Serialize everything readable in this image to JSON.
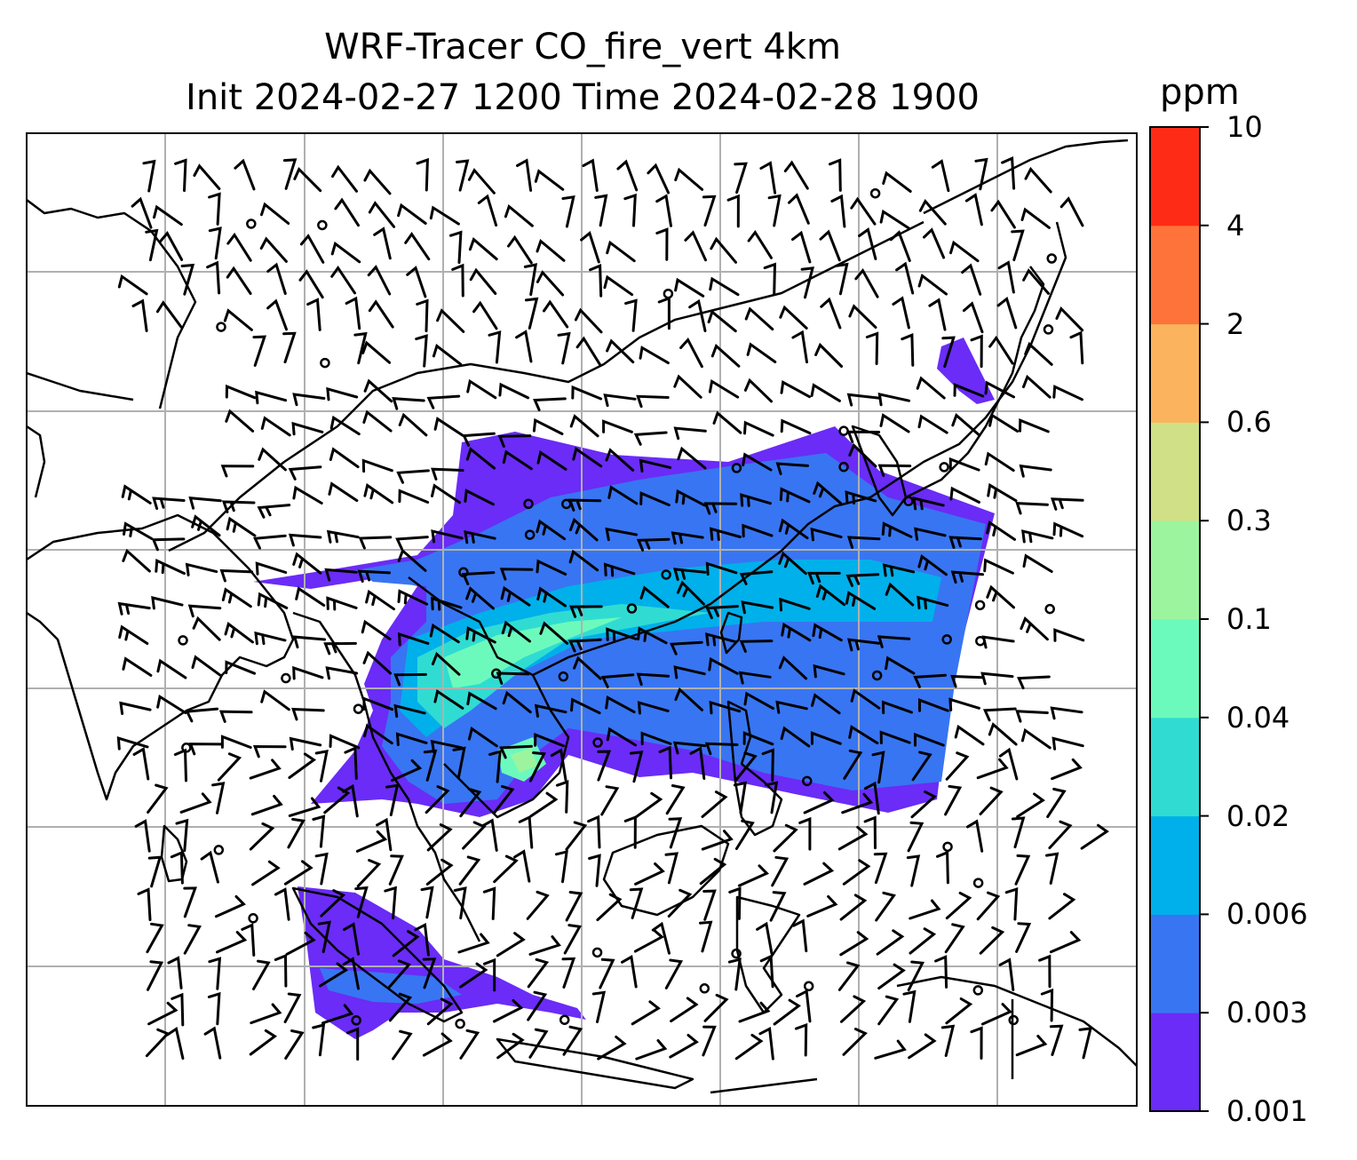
{
  "title": {
    "line1": "WRF-Tracer CO_fire_vert 4km",
    "line2": "Init 2024-02-27 1200 Time 2024-02-28 1900"
  },
  "colorbar": {
    "unit": "ppm",
    "levels": [
      "0.001",
      "0.003",
      "0.006",
      "0.02",
      "0.04",
      "0.1",
      "0.3",
      "0.6",
      "2",
      "4",
      "10"
    ],
    "colors": [
      "#6a2cf6",
      "#3875f2",
      "#00b0ea",
      "#30dcd2",
      "#6cfabc",
      "#9cf59e",
      "#d0e086",
      "#fcb35e",
      "#fd7339",
      "#fe2c17"
    ]
  },
  "map": {
    "gridlines": true,
    "gridline_color": "#b0b0b0",
    "coastline_color": "#000000",
    "wind_barbs": true
  }
}
